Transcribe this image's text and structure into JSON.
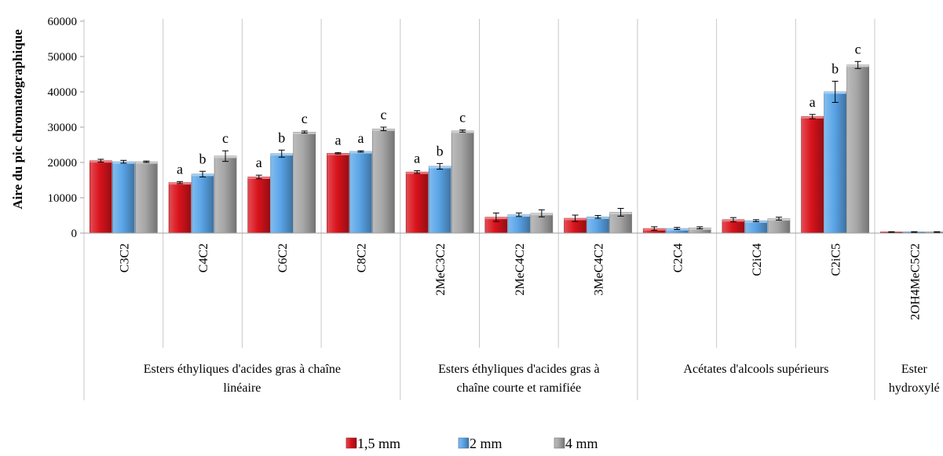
{
  "chart_data": {
    "type": "bar",
    "title": "",
    "ylabel": "Aire du pic chromatographique",
    "xlabel": "",
    "ylim": [
      0,
      60000
    ],
    "yticks": [
      0,
      10000,
      20000,
      30000,
      40000,
      50000,
      60000
    ],
    "grid": "vertical separators only",
    "legend_position": "bottom",
    "categories": [
      "C3C2",
      "C4C2",
      "C6C2",
      "C8C2",
      "2MeC3C2",
      "2MeC4C2",
      "3MeC4C2",
      "C2C4",
      "C2iC4",
      "C2iC5",
      "2OH4MeC5C2"
    ],
    "groups": [
      {
        "label_lines": [
          "Esters éthyliques d'acides gras à chaîne",
          "linéaire"
        ],
        "span": [
          0,
          3
        ]
      },
      {
        "label_lines": [
          "Esters éthyliques d'acides gras à",
          "chaîne courte et ramifiée"
        ],
        "span": [
          4,
          6
        ]
      },
      {
        "label_lines": [
          "Acétates d'alcools supérieurs"
        ],
        "span": [
          7,
          9
        ]
      },
      {
        "label_lines": [
          "Ester",
          "hydroxylé"
        ],
        "span": [
          10,
          10
        ]
      }
    ],
    "series": [
      {
        "name": "1,5 mm",
        "color": "#d9131c",
        "values": [
          20500,
          14300,
          15900,
          22600,
          17300,
          4500,
          4200,
          1300,
          3800,
          33000,
          300
        ],
        "errors": [
          400,
          300,
          500,
          200,
          400,
          1200,
          900,
          500,
          600,
          600,
          100
        ],
        "letters": [
          "",
          "a",
          "a",
          "a",
          "a",
          "",
          "",
          "",
          "",
          "a",
          ""
        ]
      },
      {
        "name": "2 mm",
        "color": "#5aa5e8",
        "values": [
          20200,
          16700,
          22500,
          23100,
          18900,
          5200,
          4600,
          1300,
          3500,
          40000,
          300
        ],
        "errors": [
          400,
          800,
          1000,
          200,
          800,
          500,
          400,
          300,
          300,
          3000,
          100
        ],
        "letters": [
          "",
          "b",
          "b",
          "a",
          "b",
          "",
          "",
          "",
          "",
          "b",
          ""
        ]
      },
      {
        "name": "4 mm",
        "color": "#a6a6a6",
        "values": [
          20200,
          21800,
          28600,
          29500,
          28900,
          5600,
          5900,
          1500,
          4100,
          47600,
          300
        ],
        "errors": [
          200,
          1500,
          300,
          500,
          300,
          1000,
          1100,
          300,
          400,
          1000,
          100
        ],
        "letters": [
          "",
          "c",
          "c",
          "c",
          "c",
          "",
          "",
          "",
          "",
          "c",
          ""
        ]
      }
    ]
  }
}
